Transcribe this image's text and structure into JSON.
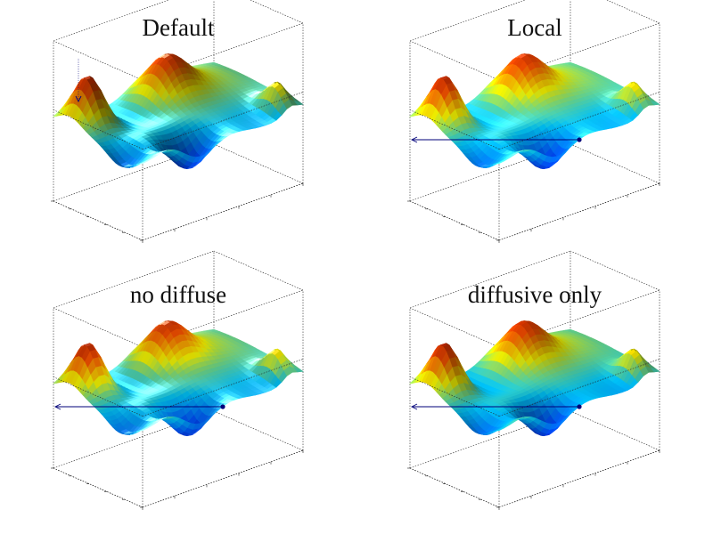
{
  "figure": {
    "panels": [
      {
        "title": "Default",
        "lighting": "default",
        "light_marker": "none"
      },
      {
        "title": "Local",
        "lighting": "local",
        "light_marker": "line"
      },
      {
        "title": "no diffuse",
        "lighting": "specular",
        "light_marker": "line"
      },
      {
        "title": "diffusive only",
        "lighting": "diffuse",
        "light_marker": "line"
      }
    ],
    "colormap": [
      "#00008f",
      "#0050ff",
      "#00c8ff",
      "#ffff00",
      "#ff5000",
      "#800000"
    ],
    "colors": {
      "axes": "#222222",
      "light_line": "#00007a",
      "background": "#ffffff"
    }
  }
}
